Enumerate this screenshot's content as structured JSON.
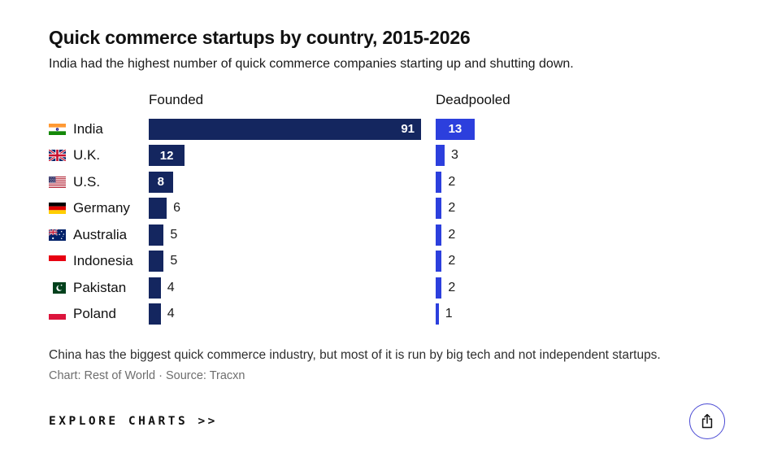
{
  "header": {
    "title": "Quick commerce startups by country, 2015-2026",
    "subtitle": "India had the highest number of quick commerce companies starting up and shutting down."
  },
  "chart_data": {
    "type": "bar",
    "orientation": "horizontal",
    "title": "Quick commerce startups by country, 2015-2026",
    "categories": [
      "India",
      "U.K.",
      "U.S.",
      "Germany",
      "Australia",
      "Indonesia",
      "Pakistan",
      "Poland"
    ],
    "flags": [
      "india",
      "uk",
      "us",
      "germany",
      "australia",
      "indonesia",
      "pakistan",
      "poland"
    ],
    "series": [
      {
        "name": "Founded",
        "color": "#14265F",
        "values": [
          91,
          12,
          8,
          6,
          5,
          5,
          4,
          4
        ]
      },
      {
        "name": "Deadpooled",
        "color": "#2C3FDD",
        "values": [
          13,
          3,
          2,
          2,
          2,
          2,
          2,
          1
        ]
      }
    ],
    "value_labels": true,
    "xlim": [
      0,
      91
    ],
    "grid": false,
    "legend_position": "column-headers"
  },
  "footer": {
    "note": "China has the biggest quick commerce industry, but most of it is run by big tech and not independent startups.",
    "credit": "Chart: Rest of World · Source: Tracxn"
  },
  "actions": {
    "explore_label": "EXPLORE CHARTS >>",
    "share_icon": "share-icon"
  },
  "colors": {
    "founded_bar": "#14265F",
    "deadpooled_bar": "#2C3FDD",
    "value_label_inside": "#FFFFFF",
    "value_label_outside": "#1A1A1A",
    "share_button_border": "#4A4AD4",
    "text_primary": "#111111",
    "text_muted": "#6E6E6E",
    "background": "#FFFFFF"
  }
}
